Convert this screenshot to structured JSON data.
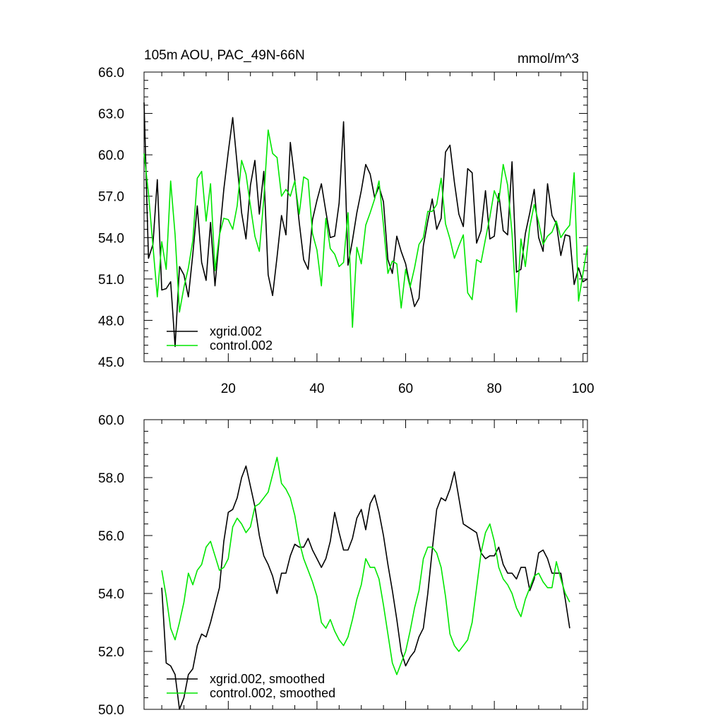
{
  "chart_data": [
    {
      "type": "line",
      "title": "105m AOU, PAC_49N-66N",
      "units": "mmol/m^3",
      "ylim": [
        45.0,
        66.0
      ],
      "xlim": [
        1,
        101
      ],
      "yticks": [
        "45.0",
        "48.0",
        "51.0",
        "54.0",
        "57.0",
        "60.0",
        "63.0",
        "66.0"
      ],
      "xticks": [
        "20",
        "40",
        "60",
        "80",
        "100"
      ],
      "legend_placement": "bottom-left",
      "series": [
        {
          "name": "xgrid.002",
          "color": "#000000",
          "x": [
            1,
            2,
            3,
            4,
            5,
            6,
            7,
            8,
            9,
            10,
            11,
            12,
            13,
            14,
            15,
            16,
            17,
            18,
            19,
            20,
            21,
            22,
            23,
            24,
            25,
            26,
            27,
            28,
            29,
            30,
            31,
            32,
            33,
            34,
            35,
            36,
            37,
            38,
            39,
            40,
            41,
            42,
            43,
            44,
            45,
            46,
            47,
            48,
            49,
            50,
            51,
            52,
            53,
            54,
            55,
            56,
            57,
            58,
            59,
            60,
            61,
            62,
            63,
            64,
            65,
            66,
            67,
            68,
            69,
            70,
            71,
            72,
            73,
            74,
            75,
            76,
            77,
            78,
            79,
            80,
            81,
            82,
            83,
            84,
            85,
            86,
            87,
            88,
            89,
            90,
            91,
            92,
            93,
            94,
            95,
            96,
            97,
            98,
            99,
            100,
            101
          ],
          "y": [
            63.8,
            52.5,
            53.5,
            58.2,
            50.2,
            50.3,
            50.8,
            46.1,
            51.9,
            51.3,
            49.7,
            52.8,
            56.3,
            52.2,
            50.9,
            55.1,
            50.5,
            54.1,
            57.5,
            60.2,
            62.7,
            59.3,
            55.8,
            53.9,
            57.8,
            59.6,
            55.7,
            58.8,
            51.3,
            49.8,
            52.6,
            55.6,
            54.2,
            60.9,
            58.2,
            55.1,
            52.4,
            51.7,
            55.3,
            56.7,
            57.9,
            55.9,
            54.0,
            54.1,
            56.5,
            62.4,
            52.0,
            53.8,
            55.8,
            57.4,
            59.3,
            58.6,
            56.9,
            57.7,
            56.6,
            52.4,
            51.4,
            54.1,
            53.0,
            52.1,
            50.5,
            49.0,
            49.6,
            53.4,
            55.2,
            56.8,
            54.6,
            55.4,
            60.2,
            60.7,
            58.0,
            55.7,
            54.8,
            59.0,
            58.7,
            53.6,
            54.5,
            57.4,
            53.9,
            54.1,
            57.2,
            54.5,
            54.2,
            59.5,
            51.5,
            51.7,
            54.3,
            55.8,
            57.5,
            54.0,
            53.0,
            57.9,
            55.6,
            55.0,
            52.7,
            54.2,
            54.1,
            50.6,
            51.8,
            50.8,
            51.0
          ]
        },
        {
          "name": "control.002",
          "color": "#00e600",
          "x": [
            1,
            2,
            3,
            4,
            5,
            6,
            7,
            8,
            9,
            10,
            11,
            12,
            13,
            14,
            15,
            16,
            17,
            18,
            19,
            20,
            21,
            22,
            23,
            24,
            25,
            26,
            27,
            28,
            29,
            30,
            31,
            32,
            33,
            34,
            35,
            36,
            37,
            38,
            39,
            40,
            41,
            42,
            43,
            44,
            45,
            46,
            47,
            48,
            49,
            50,
            51,
            52,
            53,
            54,
            55,
            56,
            57,
            58,
            59,
            60,
            61,
            62,
            63,
            64,
            65,
            66,
            67,
            68,
            69,
            70,
            71,
            72,
            73,
            74,
            75,
            76,
            77,
            78,
            79,
            80,
            81,
            82,
            83,
            84,
            85,
            86,
            87,
            88,
            89,
            90,
            91,
            92,
            93,
            94,
            95,
            96,
            97,
            98,
            99,
            100,
            101
          ],
          "y": [
            60.1,
            57.2,
            53.4,
            49.7,
            53.7,
            51.7,
            58.1,
            54.2,
            48.6,
            50.4,
            51.8,
            53.8,
            58.3,
            58.8,
            55.2,
            57.9,
            51.6,
            54.2,
            55.4,
            55.3,
            54.6,
            56.3,
            59.6,
            58.6,
            56.3,
            54.1,
            53.0,
            56.8,
            61.8,
            60.1,
            59.8,
            57.0,
            57.5,
            57.0,
            58.1,
            55.7,
            58.4,
            58.2,
            54.3,
            53.1,
            50.5,
            55.4,
            53.2,
            52.8,
            51.9,
            52.2,
            55.8,
            47.5,
            53.3,
            52.1,
            54.9,
            55.8,
            56.8,
            58.1,
            54.9,
            51.4,
            52.3,
            52.1,
            48.9,
            51.7,
            50.4,
            51.8,
            53.5,
            54.0,
            55.9,
            55.9,
            56.4,
            58.3,
            55.0,
            53.9,
            52.5,
            53.4,
            54.2,
            50.0,
            49.5,
            52.4,
            52.2,
            53.9,
            55.5,
            57.4,
            56.6,
            59.3,
            57.8,
            54.3,
            48.6,
            53.9,
            51.9,
            54.8,
            56.4,
            55.1,
            53.5,
            54.1,
            54.4,
            55.2,
            54.0,
            54.5,
            54.9,
            58.7,
            49.4,
            51.4,
            53.4
          ]
        }
      ]
    },
    {
      "type": "line",
      "ylim": [
        50.0,
        60.0
      ],
      "xlim": [
        1,
        101
      ],
      "yticks": [
        "50.0",
        "52.0",
        "54.0",
        "56.0",
        "58.0",
        "60.0"
      ],
      "legend_placement": "bottom-left",
      "series": [
        {
          "name": "xgrid.002, smoothed",
          "color": "#000000",
          "x": [
            5,
            6,
            7,
            8,
            9,
            10,
            11,
            12,
            13,
            14,
            15,
            16,
            17,
            18,
            19,
            20,
            21,
            22,
            23,
            24,
            25,
            26,
            27,
            28,
            29,
            30,
            31,
            32,
            33,
            34,
            35,
            36,
            37,
            38,
            39,
            40,
            41,
            42,
            43,
            44,
            45,
            46,
            47,
            48,
            49,
            50,
            51,
            52,
            53,
            54,
            55,
            56,
            57,
            58,
            59,
            60,
            61,
            62,
            63,
            64,
            65,
            66,
            67,
            68,
            69,
            70,
            71,
            72,
            73,
            74,
            75,
            76,
            77,
            78,
            79,
            80,
            81,
            82,
            83,
            84,
            85,
            86,
            87,
            88,
            89,
            90,
            91,
            92,
            93,
            94,
            95,
            96,
            97
          ],
          "y": [
            54.2,
            51.6,
            51.5,
            51.2,
            50.0,
            50.4,
            51.2,
            51.4,
            52.2,
            52.6,
            52.5,
            53.0,
            53.6,
            54.2,
            55.8,
            56.8,
            56.9,
            57.3,
            58.0,
            58.4,
            57.7,
            57.0,
            56.0,
            55.3,
            55.0,
            54.6,
            54.0,
            54.7,
            54.7,
            55.3,
            55.7,
            55.6,
            55.6,
            55.9,
            55.5,
            55.2,
            54.9,
            55.2,
            55.8,
            56.8,
            56.1,
            55.5,
            55.5,
            55.9,
            56.6,
            56.9,
            56.2,
            57.1,
            57.4,
            56.8,
            56.0,
            55.0,
            54.1,
            53.1,
            52.0,
            51.5,
            51.8,
            52.0,
            52.5,
            52.8,
            54.0,
            55.5,
            56.9,
            57.3,
            57.2,
            57.6,
            58.2,
            57.3,
            56.4,
            56.3,
            56.2,
            56.1,
            55.4,
            55.2,
            55.3,
            55.3,
            55.6,
            55.0,
            54.7,
            54.7,
            54.5,
            54.9,
            54.9,
            54.1,
            54.5,
            55.4,
            55.5,
            55.2,
            54.7,
            54.7,
            54.7,
            53.8,
            52.8
          ]
        },
        {
          "name": "control.002, smoothed",
          "color": "#00e600",
          "x": [
            5,
            6,
            7,
            8,
            9,
            10,
            11,
            12,
            13,
            14,
            15,
            16,
            17,
            18,
            19,
            20,
            21,
            22,
            23,
            24,
            25,
            26,
            27,
            28,
            29,
            30,
            31,
            32,
            33,
            34,
            35,
            36,
            37,
            38,
            39,
            40,
            41,
            42,
            43,
            44,
            45,
            46,
            47,
            48,
            49,
            50,
            51,
            52,
            53,
            54,
            55,
            56,
            57,
            58,
            59,
            60,
            61,
            62,
            63,
            64,
            65,
            66,
            67,
            68,
            69,
            70,
            71,
            72,
            73,
            74,
            75,
            76,
            77,
            78,
            79,
            80,
            81,
            82,
            83,
            84,
            85,
            86,
            87,
            88,
            89,
            90,
            91,
            92,
            93,
            94,
            95,
            96,
            97
          ],
          "y": [
            54.8,
            53.9,
            52.8,
            52.4,
            53.0,
            53.7,
            54.7,
            54.3,
            54.8,
            55.0,
            55.6,
            55.8,
            55.3,
            54.8,
            54.9,
            55.2,
            56.3,
            56.6,
            56.4,
            56.1,
            56.3,
            57.0,
            57.1,
            57.3,
            57.5,
            58.1,
            58.7,
            57.8,
            57.6,
            57.3,
            56.7,
            55.8,
            55.2,
            54.8,
            54.4,
            53.9,
            53.0,
            52.8,
            53.1,
            52.7,
            52.4,
            52.2,
            52.5,
            53.1,
            53.8,
            54.3,
            55.2,
            54.9,
            54.9,
            54.5,
            53.6,
            52.6,
            51.6,
            51.2,
            51.6,
            52.0,
            52.7,
            53.5,
            54.1,
            55.2,
            55.6,
            55.6,
            55.4,
            54.9,
            53.9,
            52.6,
            52.2,
            52.0,
            52.2,
            52.4,
            53.0,
            54.2,
            55.4,
            56.1,
            56.4,
            55.8,
            54.9,
            54.5,
            54.3,
            54.0,
            53.5,
            53.2,
            53.8,
            54.2,
            54.6,
            54.7,
            54.4,
            54.2,
            54.2,
            55.1,
            54.5,
            54.0,
            53.7
          ]
        }
      ]
    }
  ]
}
